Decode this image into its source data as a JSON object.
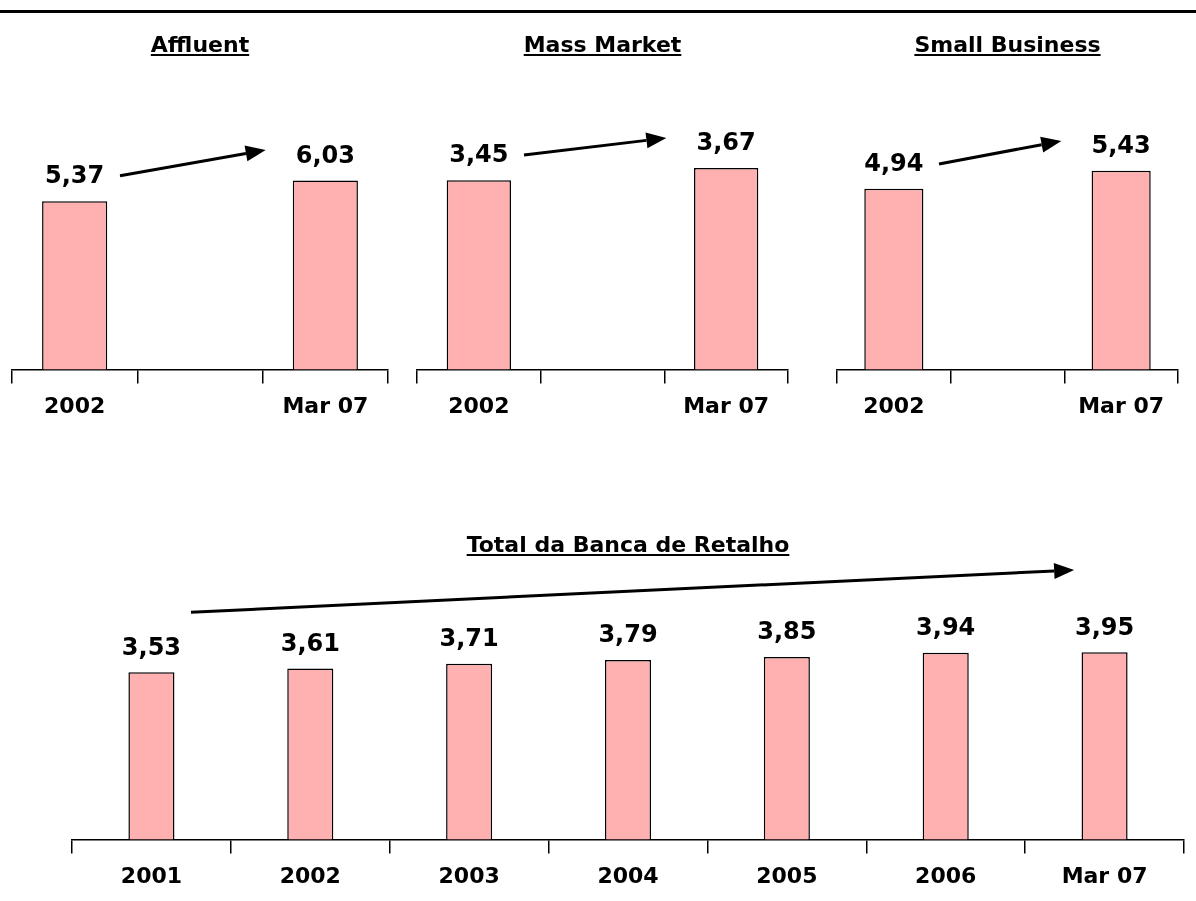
{
  "chart_data": [
    {
      "type": "bar",
      "title": "Affluent",
      "categories": [
        "2002",
        null,
        "Mar 07"
      ],
      "values": [
        5.37,
        null,
        6.03
      ],
      "value_labels": [
        "5,37",
        null,
        "6,03"
      ],
      "color": "#ffb0b0"
    },
    {
      "type": "bar",
      "title": "Mass Market",
      "categories": [
        "2002",
        null,
        "Mar 07"
      ],
      "values": [
        3.45,
        null,
        3.67
      ],
      "value_labels": [
        "3,45",
        null,
        "3,67"
      ],
      "color": "#ffb0b0"
    },
    {
      "type": "bar",
      "title": "Small Business",
      "categories": [
        "2002",
        null,
        "Mar 07"
      ],
      "values": [
        4.94,
        null,
        5.43
      ],
      "value_labels": [
        "4,94",
        null,
        "5,43"
      ],
      "color": "#ffb0b0"
    },
    {
      "type": "bar",
      "title": "Total da Banca de Retalho",
      "categories": [
        "2001",
        "2002",
        "2003",
        "2004",
        "2005",
        "2006",
        "Mar 07"
      ],
      "values": [
        3.53,
        3.61,
        3.71,
        3.79,
        3.85,
        3.94,
        3.95
      ],
      "value_labels": [
        "3,53",
        "3,61",
        "3,71",
        "3,79",
        "3,85",
        "3,94",
        "3,95"
      ],
      "color": "#ffb0b0"
    }
  ]
}
